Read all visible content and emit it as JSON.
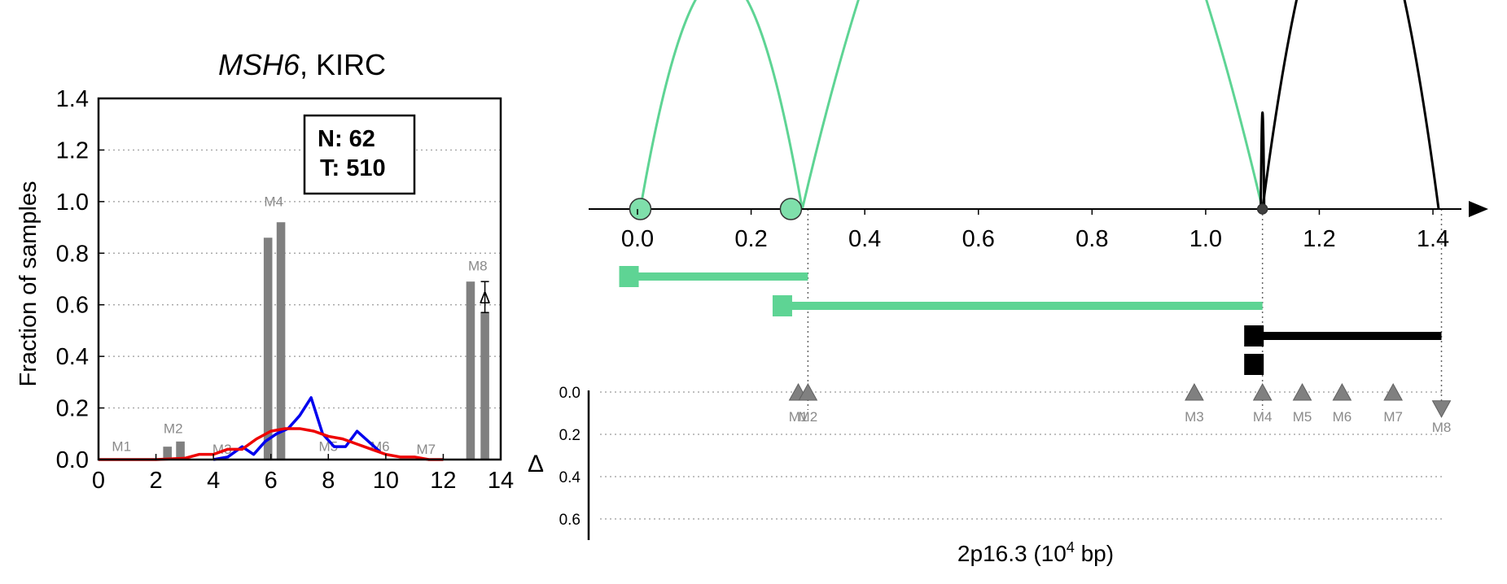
{
  "chart_data": [
    {
      "type": "bar",
      "title_gene": "MSH6",
      "title_rest": ", KIRC",
      "ylabel": "Fraction of samples",
      "xlim": [
        0,
        14
      ],
      "ylim": [
        0,
        1.4
      ],
      "x_ticks": [
        "0",
        "2",
        "4",
        "6",
        "8",
        "10",
        "12",
        "14"
      ],
      "y_ticks": [
        "0.0",
        "0.2",
        "0.4",
        "0.6",
        "0.8",
        "1.0",
        "1.2",
        "1.4"
      ],
      "grid": "horizontal dotted",
      "annotation": {
        "n_label": "N: 62",
        "t_label": "T: 510"
      },
      "delta_symbol": "Δ",
      "bars": [
        {
          "x": 2.4,
          "value": 0.05,
          "color": "#808080"
        },
        {
          "x": 2.85,
          "value": 0.07,
          "color": "#808080"
        },
        {
          "x": 5.9,
          "value": 0.86,
          "color": "#808080"
        },
        {
          "x": 6.35,
          "value": 0.92,
          "color": "#808080"
        },
        {
          "x": 12.95,
          "value": 0.69,
          "color": "#808080"
        },
        {
          "x": 13.45,
          "value": 0.57,
          "color": "#808080"
        }
      ],
      "markers": [
        {
          "label": "M1",
          "x": 0.8,
          "y": 0.02
        },
        {
          "label": "M2",
          "x": 2.6,
          "y": 0.09
        },
        {
          "label": "M3",
          "x": 4.3,
          "y": 0.01
        },
        {
          "label": "M4",
          "x": 6.1,
          "y": 0.97
        },
        {
          "label": "M5",
          "x": 8.0,
          "y": 0.02
        },
        {
          "label": "M6",
          "x": 9.8,
          "y": 0.02
        },
        {
          "label": "M7",
          "x": 11.4,
          "y": 0.01
        },
        {
          "label": "M8",
          "x": 13.2,
          "y": 0.72
        }
      ],
      "series": [
        {
          "color": "#0000ee",
          "x": [
            4.0,
            4.5,
            5.0,
            5.4,
            5.8,
            6.2,
            6.6,
            7.0,
            7.4,
            7.8,
            8.2,
            8.6,
            9.0,
            9.4,
            9.8
          ],
          "y": [
            0.0,
            0.01,
            0.05,
            0.02,
            0.07,
            0.1,
            0.12,
            0.17,
            0.24,
            0.1,
            0.05,
            0.05,
            0.11,
            0.07,
            0.03
          ]
        },
        {
          "color": "#ee0000",
          "x": [
            0.0,
            1.0,
            2.0,
            3.0,
            3.5,
            4.0,
            4.5,
            5.0,
            5.5,
            6.0,
            6.5,
            7.0,
            7.5,
            8.0,
            8.5,
            9.0,
            9.5,
            10.0,
            10.5,
            11.0,
            11.5,
            12.0
          ],
          "y": [
            0.0,
            0.0,
            0.0,
            0.005,
            0.02,
            0.02,
            0.04,
            0.04,
            0.08,
            0.11,
            0.12,
            0.12,
            0.11,
            0.09,
            0.08,
            0.06,
            0.04,
            0.02,
            0.01,
            0.01,
            0.0,
            0.0
          ]
        }
      ],
      "error_bar": {
        "x": 13.45,
        "value": 0.63,
        "low": 0.57,
        "high": 0.69
      }
    },
    {
      "type": "diagram",
      "xlim": [
        0,
        1.42
      ],
      "x_ticks": [
        "0.0",
        "0.2",
        "0.4",
        "0.6",
        "0.8",
        "1.0",
        "1.2",
        "1.4"
      ],
      "xlabel_prefix": "2p16.3 (10",
      "xlabel_exp": "4",
      "xlabel_suffix": " bp)",
      "promoters": [
        {
          "x": 0.005,
          "size": "large",
          "color": "#7fdfab"
        },
        {
          "x": 0.27,
          "size": "large",
          "color": "#7fdfab"
        },
        {
          "x": 1.1,
          "size": "small",
          "color": "#404040"
        }
      ],
      "arcs": [
        {
          "from": 0.005,
          "to": 0.29,
          "height": 0.41,
          "color": "#5ed494"
        },
        {
          "from": 0.29,
          "to": 1.1,
          "height": 0.86,
          "color": "#5ed494"
        },
        {
          "from": 1.1,
          "to": 1.41,
          "height": 0.59,
          "color": "#000000"
        },
        {
          "from": 1.097,
          "to": 1.103,
          "height": 0.17,
          "color": "#000000"
        }
      ],
      "transcripts": [
        {
          "start": -0.015,
          "end": 0.3,
          "color": "#5ed494"
        },
        {
          "start": 0.255,
          "end": 1.1,
          "color": "#5ed494"
        },
        {
          "start": 1.085,
          "end": 1.415,
          "color": "#000000"
        },
        {
          "start": 1.085,
          "end": 1.1,
          "color": "#000000"
        }
      ],
      "guides": [
        0.3,
        1.1,
        1.415
      ],
      "delta_label": "Δ",
      "delta_ticks": [
        "0.0",
        "0.2",
        "0.4",
        "0.6"
      ],
      "delta_markers": [
        {
          "label": "M1",
          "x": 0.283,
          "delta": 0.0,
          "dir": "up"
        },
        {
          "label": "M2",
          "x": 0.3,
          "delta": 0.0,
          "dir": "up"
        },
        {
          "label": "M3",
          "x": 0.98,
          "delta": 0.0,
          "dir": "up"
        },
        {
          "label": "M4",
          "x": 1.1,
          "delta": 0.0,
          "dir": "up"
        },
        {
          "label": "M5",
          "x": 1.17,
          "delta": 0.0,
          "dir": "up"
        },
        {
          "label": "M6",
          "x": 1.24,
          "delta": 0.0,
          "dir": "up"
        },
        {
          "label": "M7",
          "x": 1.33,
          "delta": 0.0,
          "dir": "up"
        },
        {
          "label": "M8",
          "x": 1.415,
          "delta": 0.08,
          "dir": "down"
        }
      ]
    }
  ]
}
